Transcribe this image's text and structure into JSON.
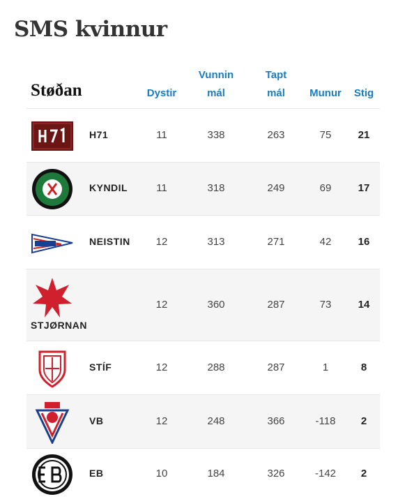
{
  "header": {
    "title": "SMS kvinnur"
  },
  "table": {
    "caption": "Støðan",
    "columns": [
      "Dystir",
      "Vunnin mál",
      "Tapt mál",
      "Munur",
      "Stig"
    ],
    "rows": [
      {
        "team": "H71",
        "values": [
          11,
          338,
          263,
          75,
          21
        ]
      },
      {
        "team": "KYNDIL",
        "values": [
          11,
          318,
          249,
          69,
          17
        ]
      },
      {
        "team": "NEISTIN",
        "values": [
          12,
          313,
          271,
          42,
          16
        ]
      },
      {
        "team": "STJØRNAN",
        "values": [
          12,
          360,
          287,
          73,
          14
        ]
      },
      {
        "team": "STÍF",
        "values": [
          12,
          288,
          287,
          1,
          8
        ]
      },
      {
        "team": "VB",
        "values": [
          12,
          248,
          366,
          -118,
          2
        ]
      },
      {
        "team": "EB",
        "values": [
          10,
          184,
          326,
          -142,
          2
        ]
      }
    ]
  }
}
